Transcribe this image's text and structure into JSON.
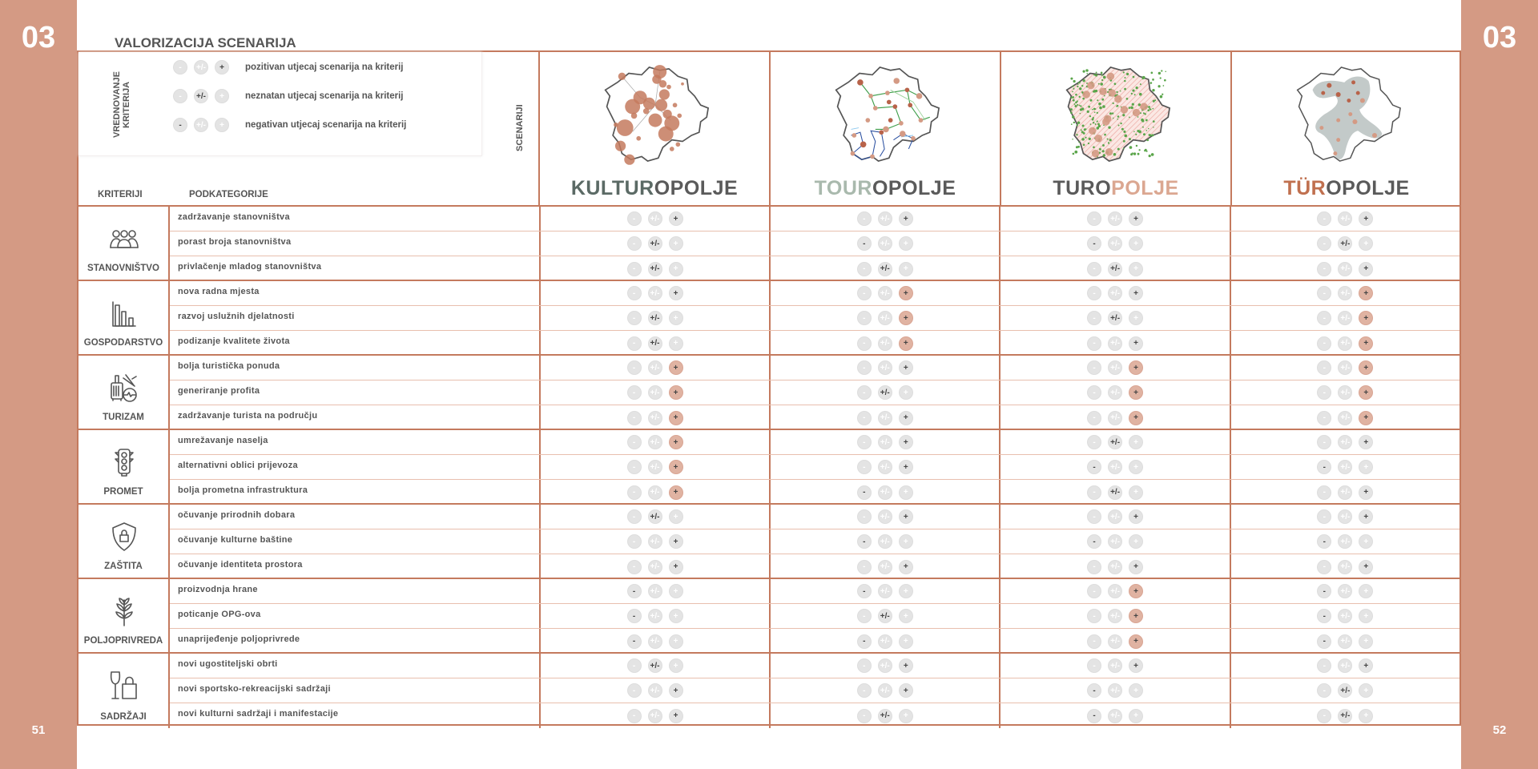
{
  "page": {
    "chapter": "03",
    "page_left": "51",
    "page_right": "52",
    "title": "VALORIZACIJA SCENARIJA"
  },
  "colors": {
    "band": "#d49a84",
    "border": "#c47a5e",
    "strong_positive": "#e0b3a2",
    "inactive": "#e4e4e4"
  },
  "legend": {
    "heading": "VREDNOVANJE KRITERIJA",
    "symbols": [
      "-",
      "+/-",
      "+"
    ],
    "items": [
      {
        "value": "pos",
        "label": "pozitivan utjecaj scenarija na kriterij"
      },
      {
        "value": "neu",
        "label": "neznatan utjecaj scenarija na kriterij"
      },
      {
        "value": "neg",
        "label": "negativan utjecaj scenarija na kriterij"
      }
    ]
  },
  "headers": {
    "criteria": "KRITERIJI",
    "subcategories": "PODKATEGORIJE",
    "scenarios": "SCENARIJI"
  },
  "scenarios": [
    {
      "map": "kulturopolje-map",
      "title_parts": [
        {
          "text": "KULTUR",
          "color": "#5b6a65"
        },
        {
          "text": "OPOLJE",
          "color": "#5a5a5a"
        }
      ]
    },
    {
      "map": "touropolje-map",
      "title_parts": [
        {
          "text": "TOUR",
          "color": "#a9b9ad"
        },
        {
          "text": "OPOLJE",
          "color": "#5a5a5a"
        }
      ]
    },
    {
      "map": "turopolje-map",
      "title_parts": [
        {
          "text": "TURO",
          "color": "#5a5a5a"
        },
        {
          "text": "POLJE",
          "color": "#dba791"
        }
      ]
    },
    {
      "map": "turopolje-umlaut-map",
      "title_parts": [
        {
          "text": "TÜR",
          "color": "#c0704f"
        },
        {
          "text": "OPOLJE",
          "color": "#5a5a5a"
        }
      ]
    }
  ],
  "rating_key": {
    "pos": "positive",
    "pos-strong": "strongly positive (highlighted)",
    "neu": "negligible",
    "neg": "negative"
  },
  "criteria": [
    {
      "name": "STANOVNIŠTVO",
      "icon": "people-icon",
      "subcategories": [
        {
          "label": "zadržavanje stanovništva",
          "ratings": [
            "pos",
            "pos",
            "pos",
            "pos"
          ]
        },
        {
          "label": "porast broja stanovništva",
          "ratings": [
            "neu",
            "neg",
            "neg",
            "neu"
          ]
        },
        {
          "label": "privlačenje mladog stanovništva",
          "ratings": [
            "neu",
            "neu",
            "neu",
            "pos"
          ]
        }
      ]
    },
    {
      "name": "GOSPODARSTVO",
      "icon": "bar-chart-icon",
      "subcategories": [
        {
          "label": "nova radna mjesta",
          "ratings": [
            "pos",
            "pos-strong",
            "pos",
            "pos-strong"
          ]
        },
        {
          "label": "razvoj uslužnih djelatnosti",
          "ratings": [
            "neu",
            "pos-strong",
            "neu",
            "pos-strong"
          ]
        },
        {
          "label": "podizanje kvalitete života",
          "ratings": [
            "neu",
            "pos-strong",
            "pos",
            "pos-strong"
          ]
        }
      ]
    },
    {
      "name": "TURIZAM",
      "icon": "luggage-plane-icon",
      "subcategories": [
        {
          "label": "bolja turistička ponuda",
          "ratings": [
            "pos-strong",
            "pos",
            "pos-strong",
            "pos-strong"
          ]
        },
        {
          "label": "generiranje profita",
          "ratings": [
            "pos-strong",
            "neu",
            "pos-strong",
            "pos-strong"
          ]
        },
        {
          "label": "zadržavanje turista na području",
          "ratings": [
            "pos-strong",
            "pos",
            "pos-strong",
            "pos-strong"
          ]
        }
      ]
    },
    {
      "name": "PROMET",
      "icon": "traffic-light-icon",
      "subcategories": [
        {
          "label": "umrežavanje naselja",
          "ratings": [
            "pos-strong",
            "pos",
            "neu",
            "pos"
          ]
        },
        {
          "label": "alternativni oblici prijevoza",
          "ratings": [
            "pos-strong",
            "pos",
            "neg",
            "neg"
          ]
        },
        {
          "label": "bolja prometna infrastruktura",
          "ratings": [
            "pos-strong",
            "neg",
            "neu",
            "pos"
          ]
        }
      ]
    },
    {
      "name": "ZAŠTITA",
      "icon": "shield-lock-icon",
      "subcategories": [
        {
          "label": "očuvanje prirodnih dobara",
          "ratings": [
            "neu",
            "pos",
            "pos",
            "pos"
          ]
        },
        {
          "label": "očuvanje kulturne baštine",
          "ratings": [
            "pos",
            "neg",
            "neg",
            "neg"
          ]
        },
        {
          "label": "očuvanje identiteta prostora",
          "ratings": [
            "pos",
            "pos",
            "pos",
            "pos"
          ]
        }
      ]
    },
    {
      "name": "POLJOPRIVREDA",
      "icon": "wheat-icon",
      "subcategories": [
        {
          "label": "proizvodnja hrane",
          "ratings": [
            "neg",
            "neg",
            "pos-strong",
            "neg"
          ]
        },
        {
          "label": "poticanje OPG-ova",
          "ratings": [
            "neg",
            "neu",
            "pos-strong",
            "neg"
          ]
        },
        {
          "label": "unaprijeđenje poljoprivrede",
          "ratings": [
            "neg",
            "neg",
            "pos-strong",
            "neg"
          ]
        }
      ]
    },
    {
      "name": "SADRŽAJI",
      "icon": "wine-glass-shopping-bag-icon",
      "subcategories": [
        {
          "label": "novi ugostiteljski obrti",
          "ratings": [
            "neu",
            "pos",
            "pos",
            "pos"
          ]
        },
        {
          "label": "novi sportsko-rekreacijski sadržaji",
          "ratings": [
            "pos",
            "pos",
            "neg",
            "neu"
          ]
        },
        {
          "label": "novi kulturni sadržaji i manifestacije",
          "ratings": [
            "pos",
            "neu",
            "neg",
            "neu"
          ]
        }
      ]
    }
  ]
}
